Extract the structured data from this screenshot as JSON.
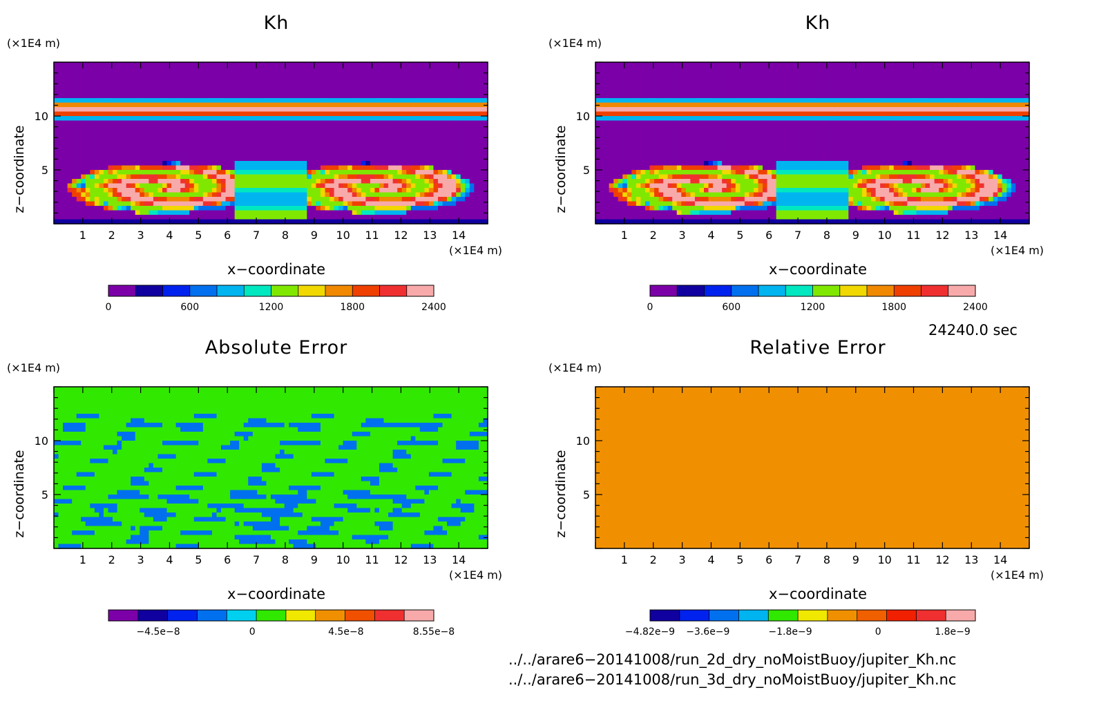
{
  "panels": [
    {
      "title": "Kh",
      "x_unit": "(×1E4 m)",
      "z_unit": "(×1E4 m)",
      "xlabel": "x−coordinate",
      "zlabel": "z−coordinate",
      "x_ticks": [
        "1",
        "2",
        "3",
        "4",
        "5",
        "6",
        "7",
        "8",
        "9",
        "10",
        "11",
        "12",
        "13",
        "14"
      ],
      "z_ticks": [
        "5",
        "10"
      ],
      "colorbar": {
        "colors": [
          "#7b00a8",
          "#1000a0",
          "#0022ee",
          "#0070ee",
          "#00b4f0",
          "#00e8c0",
          "#80e800",
          "#f0d800",
          "#f08800",
          "#f04000",
          "#f03030",
          "#f8aaaa"
        ],
        "labels": [
          "0",
          "600",
          "1200",
          "1800",
          "2400"
        ],
        "label_pos": [
          0,
          0.25,
          0.5,
          0.75,
          1.0
        ]
      }
    },
    {
      "title": "Kh",
      "x_unit": "(×1E4 m)",
      "z_unit": "(×1E4 m)",
      "xlabel": "x−coordinate",
      "zlabel": "z−coordinate",
      "x_ticks": [
        "1",
        "2",
        "3",
        "4",
        "5",
        "6",
        "7",
        "8",
        "9",
        "10",
        "11",
        "12",
        "13",
        "14"
      ],
      "z_ticks": [
        "5",
        "10"
      ],
      "colorbar": {
        "colors": [
          "#7b00a8",
          "#1000a0",
          "#0022ee",
          "#0070ee",
          "#00b4f0",
          "#00e8c0",
          "#80e800",
          "#f0d800",
          "#f08800",
          "#f04000",
          "#f03030",
          "#f8aaaa"
        ],
        "labels": [
          "0",
          "600",
          "1200",
          "1800",
          "2400"
        ],
        "label_pos": [
          0,
          0.25,
          0.5,
          0.75,
          1.0
        ]
      }
    },
    {
      "title": "Absolute Error",
      "x_unit": "(×1E4 m)",
      "z_unit": "(×1E4 m)",
      "xlabel": "x−coordinate",
      "zlabel": "z−coordinate",
      "x_ticks": [
        "1",
        "2",
        "3",
        "4",
        "5",
        "6",
        "7",
        "8",
        "9",
        "10",
        "11",
        "12",
        "13",
        "14"
      ],
      "z_ticks": [
        "5",
        "10"
      ],
      "colorbar": {
        "colors": [
          "#7b00a8",
          "#1000a0",
          "#0022ee",
          "#0070ee",
          "#00d0f0",
          "#30e800",
          "#f0e800",
          "#f09000",
          "#f05000",
          "#f03030",
          "#f8aaaa"
        ],
        "labels": [
          "−4.5e−8",
          "0",
          "4.5e−8",
          "8.55e−8"
        ],
        "label_pos": [
          0.153,
          0.442,
          0.73,
          1.0
        ]
      }
    },
    {
      "title": "Relative Error",
      "x_unit": "(×1E4 m)",
      "z_unit": "(×1E4 m)",
      "xlabel": "x−coordinate",
      "zlabel": "z−coordinate",
      "x_ticks": [
        "1",
        "2",
        "3",
        "4",
        "5",
        "6",
        "7",
        "8",
        "9",
        "10",
        "11",
        "12",
        "13",
        "14"
      ],
      "z_ticks": [
        "5",
        "10"
      ],
      "colorbar": {
        "colors": [
          "#1000a0",
          "#0022ee",
          "#0070ee",
          "#00b4f0",
          "#30e800",
          "#f0e800",
          "#f09000",
          "#f06000",
          "#f02000",
          "#f03030",
          "#f8aaaa"
        ],
        "labels": [
          "−4.82e−9",
          "−3.6e−9",
          "−1.8e−9",
          "0",
          "1.8e−9"
        ],
        "label_pos": [
          0.0,
          0.178,
          0.431,
          0.701,
          0.93
        ]
      }
    }
  ],
  "chart_data": [
    {
      "type": "heatmap",
      "title": "Kh",
      "xlabel": "x−coordinate",
      "ylabel": "z−coordinate",
      "x_unit": "×1E4 m",
      "z_unit": "×1E4 m",
      "xlim": [
        0,
        15
      ],
      "ylim": [
        0,
        15
      ],
      "levels": [
        0,
        200,
        400,
        600,
        800,
        1000,
        1200,
        1400,
        1600,
        1800,
        2000,
        2200,
        2400
      ]
    },
    {
      "type": "heatmap",
      "title": "Kh",
      "xlabel": "x−coordinate",
      "ylabel": "z−coordinate",
      "x_unit": "×1E4 m",
      "z_unit": "×1E4 m",
      "xlim": [
        0,
        15
      ],
      "ylim": [
        0,
        15
      ],
      "levels": [
        0,
        200,
        400,
        600,
        800,
        1000,
        1200,
        1400,
        1600,
        1800,
        2000,
        2200,
        2400
      ]
    },
    {
      "type": "heatmap",
      "title": "Absolute Error",
      "xlabel": "x−coordinate",
      "ylabel": "z−coordinate",
      "x_unit": "×1E4 m",
      "z_unit": "×1E4 m",
      "xlim": [
        0,
        15
      ],
      "ylim": [
        0,
        15
      ],
      "colorbar_labels": [
        "−4.5e−8",
        "0",
        "4.5e−8",
        "8.55e−8"
      ]
    },
    {
      "type": "heatmap",
      "title": "Relative Error",
      "xlabel": "x−coordinate",
      "ylabel": "z−coordinate",
      "x_unit": "×1E4 m",
      "z_unit": "×1E4 m",
      "xlim": [
        0,
        15
      ],
      "ylim": [
        0,
        15
      ],
      "colorbar_labels": [
        "−4.82e−9",
        "−3.6e−9",
        "−1.8e−9",
        "0",
        "1.8e−9"
      ]
    }
  ],
  "time_label": "24240.0 sec",
  "files": [
    "../../arare6−20141008/run_2d_dry_noMoistBuoy/jupiter_Kh.nc",
    "../../arare6−20141008/run_3d_dry_noMoistBuoy/jupiter_Kh.nc"
  ]
}
